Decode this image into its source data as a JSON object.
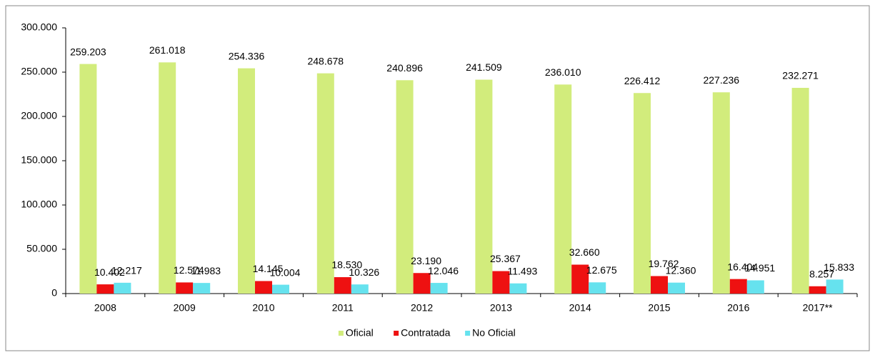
{
  "chart_data": {
    "type": "bar",
    "categories": [
      "2008",
      "2009",
      "2010",
      "2011",
      "2012",
      "2013",
      "2014",
      "2015",
      "2016",
      "2017**"
    ],
    "series": [
      {
        "name": "Oficial",
        "color": "#d2ec7c",
        "values": [
          259203,
          261018,
          254336,
          248678,
          240896,
          241509,
          236010,
          226412,
          227236,
          232271
        ],
        "value_labels": [
          "259.203",
          "261.018",
          "254.336",
          "248.678",
          "240.896",
          "241.509",
          "236.010",
          "226.412",
          "227.236",
          "232.271"
        ]
      },
      {
        "name": "Contratada",
        "color": "#ee1111",
        "values": [
          10402,
          12574,
          14145,
          18530,
          23190,
          25367,
          32660,
          19762,
          16404,
          8257
        ],
        "value_labels": [
          "10.402",
          "12.574",
          "14.145",
          "18.530",
          "23.190",
          "25.367",
          "32.660",
          "19.762",
          "16.404",
          "8.257"
        ]
      },
      {
        "name": "No Oficial",
        "color": "#66e2ee",
        "values": [
          12217,
          11983,
          10004,
          10326,
          12046,
          11493,
          12675,
          12360,
          14951,
          15833
        ],
        "value_labels": [
          "12.217",
          "11.983",
          "10.004",
          "10.326",
          "12.046",
          "11.493",
          "12.675",
          "12.360",
          "14.951",
          "15.833"
        ]
      }
    ],
    "ylim": [
      0,
      300000
    ],
    "yticks": [
      0,
      {
        "value": 50000,
        "label": "50.000"
      },
      {
        "value": 100000,
        "label": "100.000"
      },
      {
        "value": 150000,
        "label": "150.000"
      },
      {
        "value": 200000,
        "label": "200.000"
      },
      {
        "value": 250000,
        "label": "250.000"
      },
      {
        "value": 300000,
        "label": "300.000"
      }
    ],
    "legend": "bottom"
  }
}
